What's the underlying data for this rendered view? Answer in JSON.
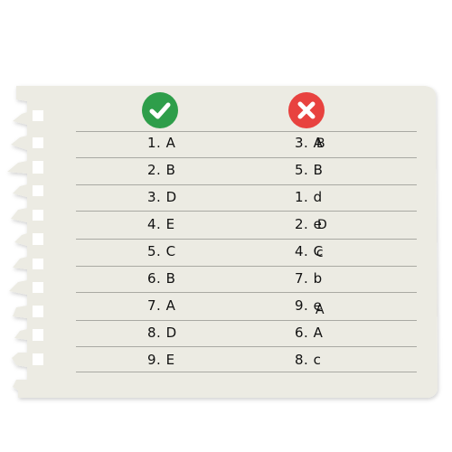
{
  "columns": {
    "correct_icon": "check-icon",
    "wrong_icon": "cross-icon"
  },
  "colors": {
    "paper": "#ecebe3",
    "correct": "#2e9e4a",
    "wrong": "#e8423f",
    "lines": "#a9a9a3"
  },
  "rows": [
    {
      "correct": "1. A",
      "wrong": "3. A",
      "wrong_overlay": "B"
    },
    {
      "correct": "2. B",
      "wrong": "5. B",
      "wrong_overlay": ""
    },
    {
      "correct": "3. D",
      "wrong": "1. d",
      "wrong_overlay": ""
    },
    {
      "correct": "4. E",
      "wrong": "2. e",
      "wrong_overlay": "D"
    },
    {
      "correct": "5. C",
      "wrong": "4. C",
      "wrong_overlay": "c"
    },
    {
      "correct": "6. B",
      "wrong": "7. b",
      "wrong_overlay": ""
    },
    {
      "correct": "7. A",
      "wrong": "9. e",
      "wrong_overlay": "A"
    },
    {
      "correct": "8. D",
      "wrong": "6. A",
      "wrong_overlay": ""
    },
    {
      "correct": "9. E",
      "wrong": "8. c",
      "wrong_overlay": ""
    }
  ]
}
